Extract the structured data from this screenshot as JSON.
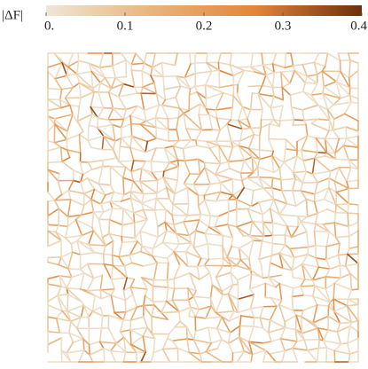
{
  "chart_data": {
    "type": "network",
    "colorbar": {
      "label": "|ΔF|",
      "lim": [
        0,
        0.4
      ],
      "ticks": [
        {
          "value": 0,
          "label": "0."
        },
        0.1,
        0.2,
        0.3,
        0.4
      ],
      "colors": [
        "#efe6d6",
        "#e9b47c",
        "#e0853a",
        "#6e2f0c"
      ]
    }
  }
}
